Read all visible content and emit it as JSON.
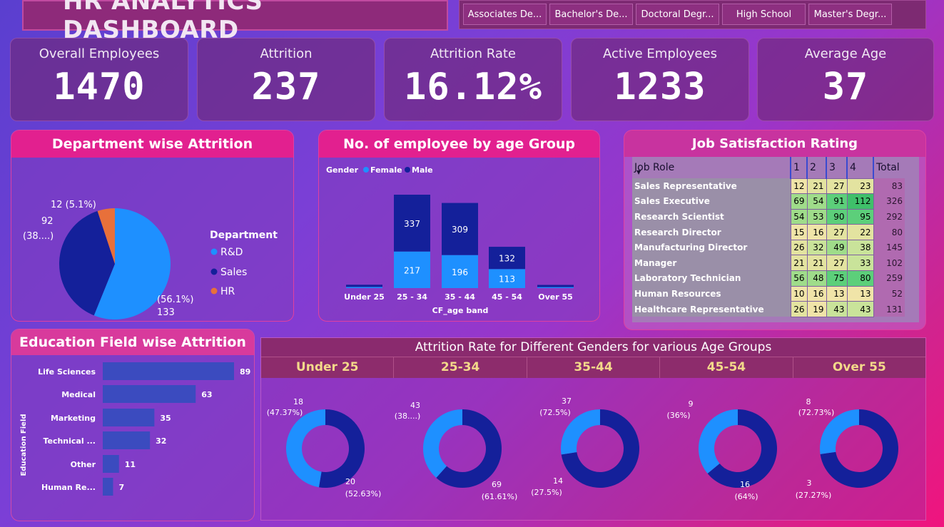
{
  "header": {
    "title": "HR ANALYTICS DASHBOARD",
    "slicers": [
      "Associates De...",
      "Bachelor's De...",
      "Doctoral Degr...",
      "High School",
      "Master's Degr..."
    ]
  },
  "kpis": [
    {
      "label": "Overall Employees",
      "value": "1470"
    },
    {
      "label": "Attrition",
      "value": "237"
    },
    {
      "label": "Attrition Rate",
      "value": "16.12%"
    },
    {
      "label": "Active Employees",
      "value": "1233"
    },
    {
      "label": "Average Age",
      "value": "37"
    }
  ],
  "colors": {
    "female": "#1e90ff",
    "male": "#14209a",
    "rd": "#1e90ff",
    "sales": "#14209a",
    "hr": "#e8703a",
    "bar": "#3b4bbf"
  },
  "chart_data": [
    {
      "type": "pie",
      "title": "Department wise Attrition",
      "legend_title": "Department",
      "categories": [
        "R&D",
        "Sales",
        "HR"
      ],
      "values": [
        133,
        92,
        12
      ],
      "labels": {
        "rd": [
          "133",
          "(56.1%)"
        ],
        "sales": [
          "92",
          "(38....)"
        ],
        "hr": [
          "12 (5.1%)"
        ]
      }
    },
    {
      "type": "bar",
      "title": "No. of employee by age Group",
      "legend_title": "Gender",
      "legend": [
        "Female",
        "Male"
      ],
      "xlabel": "CF_age band",
      "categories": [
        "Under 25",
        "25 - 34",
        "35 - 44",
        "45 - 54",
        "Over 55"
      ],
      "series": [
        {
          "name": "Female",
          "values": [
            7,
            217,
            196,
            113,
            6
          ],
          "labels": [
            "",
            "217",
            "196",
            "113",
            ""
          ]
        },
        {
          "name": "Male",
          "values": [
            13,
            337,
            309,
            132,
            13
          ],
          "labels": [
            "",
            "337",
            "309",
            "132",
            ""
          ]
        }
      ]
    },
    {
      "type": "table",
      "title": "Job Satisfaction Rating",
      "columns": [
        "Job Role",
        "1",
        "2",
        "3",
        "4",
        "Total"
      ],
      "rows": [
        [
          "Sales Representative",
          "12",
          "21",
          "27",
          "23",
          "83"
        ],
        [
          "Sales Executive",
          "69",
          "54",
          "91",
          "112",
          "326"
        ],
        [
          "Research Scientist",
          "54",
          "53",
          "90",
          "95",
          "292"
        ],
        [
          "Research Director",
          "15",
          "16",
          "27",
          "22",
          "80"
        ],
        [
          "Manufacturing Director",
          "26",
          "32",
          "49",
          "38",
          "145"
        ],
        [
          "Manager",
          "21",
          "21",
          "27",
          "33",
          "102"
        ],
        [
          "Laboratory Technician",
          "56",
          "48",
          "75",
          "80",
          "259"
        ],
        [
          "Human Resources",
          "10",
          "16",
          "13",
          "13",
          "52"
        ],
        [
          "Healthcare Representative",
          "26",
          "19",
          "43",
          "43",
          "131"
        ]
      ]
    },
    {
      "type": "bar",
      "orientation": "horizontal",
      "title": "Education Field wise Attrition",
      "ylabel": "Education Field",
      "categories": [
        "Life Sciences",
        "Medical",
        "Marketing",
        "Technical ...",
        "Other",
        "Human Re..."
      ],
      "values": [
        89,
        63,
        35,
        32,
        11,
        7
      ]
    },
    {
      "type": "pie",
      "title": "Attrition Rate for Different Genders for various Age Groups",
      "groups": [
        {
          "name": "Under 25",
          "female": 18,
          "male": 20,
          "female_label": [
            "18",
            "(47.37%)"
          ],
          "male_label": [
            "20",
            "(52.63%)"
          ]
        },
        {
          "name": "25-34",
          "female": 43,
          "male": 69,
          "female_label": [
            "43",
            "(38....)"
          ],
          "male_label": [
            "69",
            "(61.61%)"
          ]
        },
        {
          "name": "35-44",
          "female": 14,
          "male": 37,
          "female_label": [
            "14",
            "(27.5%)"
          ],
          "male_label": [
            "37",
            "(72.5%)"
          ]
        },
        {
          "name": "45-54",
          "female": 9,
          "male": 16,
          "female_label": [
            "9",
            "(36%)"
          ],
          "male_label": [
            "16",
            "(64%)"
          ]
        },
        {
          "name": "Over 55",
          "female": 3,
          "male": 8,
          "female_label": [
            "3",
            "(27.27%)"
          ],
          "male_label": [
            "8",
            "(72.73%)"
          ]
        }
      ]
    }
  ]
}
